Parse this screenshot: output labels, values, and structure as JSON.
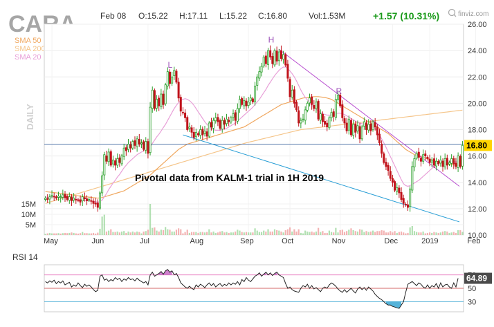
{
  "header": {
    "ticker": "CARA",
    "date": "Feb 08",
    "open": "O:15.22",
    "high": "H:17.11",
    "low": "L:15.22",
    "close": "C:16.80",
    "volume": "Vol:1.53M",
    "change": "+1.57 (10.31%)",
    "brand": "finviz.com",
    "daily_label": "DAILY"
  },
  "legend": [
    {
      "label": "SMA 50",
      "color": "#f0a860"
    },
    {
      "label": "SMA 200",
      "color": "#f5c58a"
    },
    {
      "label": "SMA 20",
      "color": "#e8a0d8"
    }
  ],
  "annotation": "Pivotal data from KALM-1 trial in 1H 2019",
  "pivot_labels": [
    "L",
    "H",
    "R"
  ],
  "colors": {
    "up": "#2ca02c",
    "down": "#c0121a",
    "trendline_upper": "#b84fd0",
    "trendline_lower": "#2a9fd6",
    "horizontal_level": "#5577aa",
    "rsi_line": "#222222",
    "rsi_overbought": "#e05bb0",
    "rsi_oversold": "#2aa0d0",
    "rsi_mid": "#cc4444",
    "price_tag": "#ffd400"
  },
  "chart_data": [
    {
      "type": "candlestick",
      "title": "CARA",
      "ylabel": "",
      "ylim": [
        10,
        26
      ],
      "y_ticks": [
        "26.00",
        "24.00",
        "22.00",
        "20.00",
        "18.00",
        "16.00",
        "14.00",
        "12.00",
        "10.00"
      ],
      "y_tick_values": [
        26,
        24,
        22,
        20,
        18,
        16,
        14,
        12,
        10
      ],
      "x_ticks": [
        "May",
        "Jun",
        "Jul",
        "Aug",
        "Sep",
        "Oct",
        "Nov",
        "Dec",
        "2019",
        "Feb"
      ],
      "x_tick_index": [
        3,
        25,
        47,
        70,
        93,
        112,
        135,
        159,
        176,
        197
      ],
      "last_price": "16.80",
      "horizontal_level": 16.9,
      "volume_axis": {
        "ticks": [
          "15M",
          "10M",
          "5M"
        ],
        "tick_values": [
          15,
          10,
          5
        ],
        "unit": "M"
      },
      "close": [
        12.8,
        12.7,
        12.9,
        13.0,
        12.9,
        12.8,
        12.95,
        12.9,
        13.05,
        12.85,
        12.7,
        12.9,
        12.6,
        12.8,
        12.7,
        12.65,
        12.5,
        12.9,
        12.75,
        12.6,
        12.7,
        12.6,
        12.4,
        12.35,
        12.1,
        13.2,
        14.5,
        16.1,
        15.6,
        16.3,
        15.3,
        15.7,
        15.3,
        15.8,
        15.5,
        16.0,
        16.6,
        16.4,
        16.9,
        16.6,
        17.1,
        16.8,
        17.3,
        16.9,
        17.0,
        16.5,
        17.1,
        16.2,
        19.7,
        21.0,
        19.6,
        20.3,
        19.8,
        20.7,
        19.9,
        21.4,
        22.4,
        21.5,
        22.0,
        22.5,
        21.6,
        20.4,
        19.4,
        19.3,
        18.9,
        18.0,
        18.2,
        17.8,
        17.4,
        17.8,
        17.6,
        18.0,
        17.6,
        17.9,
        17.5,
        18.5,
        18.2,
        18.7,
        18.9,
        18.6,
        18.1,
        18.7,
        18.4,
        18.8,
        18.6,
        18.9,
        19.2,
        18.7,
        19.6,
        20.3,
        19.9,
        20.2,
        19.8,
        20.1,
        20.4,
        20.1,
        21.3,
        22.0,
        22.4,
        22.8,
        23.5,
        23.0,
        24.0,
        23.5,
        23.0,
        24.0,
        23.2,
        23.9,
        23.4,
        23.7,
        22.9,
        21.9,
        20.5,
        21.0,
        20.0,
        19.5,
        18.5,
        18.7,
        18.8,
        19.5,
        20.0,
        20.4,
        19.9,
        19.6,
        20.1,
        18.8,
        19.2,
        18.6,
        18.4,
        18.2,
        18.9,
        19.3,
        19.0,
        20.3,
        20.6,
        19.8,
        18.9,
        18.5,
        17.9,
        18.8,
        17.6,
        18.4,
        17.8,
        18.3,
        17.3,
        18.2,
        18.6,
        18.0,
        18.4,
        17.9,
        18.6,
        18.2,
        17.6,
        17.0,
        16.2,
        15.5,
        15.2,
        14.9,
        14.3,
        14.0,
        13.4,
        13.6,
        13.2,
        12.7,
        12.4,
        12.3,
        12.1,
        13.5,
        15.2,
        15.8,
        16.2,
        15.9,
        15.6,
        16.1,
        16.0,
        15.8,
        15.5,
        15.7,
        15.3,
        15.6,
        15.4,
        15.7,
        15.2,
        15.8,
        15.3,
        15.5,
        15.8,
        15.4,
        15.2,
        16.0,
        15.2,
        16.8
      ],
      "sma20": [
        12.9,
        12.85,
        12.85,
        12.9,
        12.9,
        12.88,
        12.87,
        12.86,
        12.85,
        12.83,
        12.8,
        12.78,
        12.75,
        12.73,
        12.7,
        12.68,
        12.66,
        12.65,
        12.63,
        12.6,
        12.59,
        12.58,
        12.56,
        12.53,
        12.5,
        12.55,
        12.65,
        12.9,
        13.15,
        13.45,
        13.7,
        13.95,
        14.15,
        14.4,
        14.6,
        14.85,
        15.1,
        15.3,
        15.5,
        15.65,
        15.8,
        15.95,
        16.1,
        16.2,
        16.3,
        16.4,
        16.5,
        16.55,
        16.7,
        16.95,
        17.2,
        17.45,
        17.65,
        17.9,
        18.15,
        18.4,
        18.7,
        19.0,
        19.3,
        19.6,
        19.85,
        20.05,
        20.2,
        20.3,
        20.35,
        20.3,
        20.2,
        20.05,
        19.85,
        19.6,
        19.35,
        19.1,
        18.85,
        18.6,
        18.4,
        18.25,
        18.1,
        18.0,
        17.95,
        17.95,
        17.95,
        18.0,
        18.05,
        18.1,
        18.2,
        18.3,
        18.4,
        18.5,
        18.65,
        18.8,
        18.95,
        19.1,
        19.25,
        19.4,
        19.55,
        19.7,
        19.9,
        20.1,
        20.3,
        20.55,
        20.8,
        21.05,
        21.35,
        21.6,
        21.85,
        22.1,
        22.3,
        22.5,
        22.65,
        22.75,
        22.75,
        22.65,
        22.45,
        22.25,
        22.0,
        21.7,
        21.35,
        21.0,
        20.7,
        20.45,
        20.25,
        20.05,
        19.85,
        19.7,
        19.55,
        19.4,
        19.3,
        19.2,
        19.15,
        19.1,
        19.1,
        19.1,
        19.15,
        19.2,
        19.25,
        19.25,
        19.2,
        19.15,
        19.05,
        18.95,
        18.85,
        18.75,
        18.65,
        18.55,
        18.5,
        18.45,
        18.4,
        18.35,
        18.3,
        18.25,
        18.2,
        18.1,
        17.9,
        17.6,
        17.3,
        17.0,
        16.65,
        16.3,
        15.95,
        15.6,
        15.25,
        14.9,
        14.55,
        14.2,
        13.9,
        13.75,
        13.7,
        13.75,
        13.85,
        13.95,
        14.05,
        14.15,
        14.3,
        14.45,
        14.6,
        14.75,
        14.9,
        15.05,
        15.2,
        15.35,
        15.45,
        15.55,
        15.6,
        15.65,
        15.65,
        15.6,
        15.55,
        15.6,
        15.55,
        15.6
      ],
      "sma50": [
        13.3,
        13.28,
        13.26,
        13.24,
        13.22,
        13.2,
        13.18,
        13.16,
        13.14,
        13.12,
        13.1,
        13.08,
        13.06,
        13.03,
        13.0,
        12.98,
        12.96,
        12.94,
        12.92,
        12.9,
        12.88,
        12.86,
        12.84,
        12.82,
        12.8,
        12.82,
        12.85,
        12.9,
        12.95,
        13.0,
        13.05,
        13.1,
        13.15,
        13.2,
        13.25,
        13.3,
        13.35,
        13.45,
        13.55,
        13.65,
        13.75,
        13.85,
        13.95,
        14.05,
        14.15,
        14.25,
        14.35,
        14.45,
        14.55,
        14.7,
        14.85,
        15.0,
        15.15,
        15.3,
        15.45,
        15.6,
        15.75,
        15.9,
        16.05,
        16.2,
        16.35,
        16.5,
        16.6,
        16.7,
        16.8,
        16.9,
        16.95,
        17.0,
        17.05,
        17.1,
        17.15,
        17.2,
        17.25,
        17.3,
        17.35,
        17.4,
        17.45,
        17.5,
        17.55,
        17.6,
        17.65,
        17.7,
        17.75,
        17.8,
        17.85,
        17.9,
        17.95,
        18.0,
        18.05,
        18.1,
        18.15,
        18.2,
        18.3,
        18.4,
        18.5,
        18.6,
        18.7,
        18.8,
        18.9,
        19.0,
        19.1,
        19.2,
        19.3,
        19.4,
        19.5,
        19.6,
        19.7,
        19.8,
        19.9,
        19.95,
        20.0,
        20.05,
        20.1,
        20.15,
        20.2,
        20.25,
        20.3,
        20.35,
        20.4,
        20.42,
        20.44,
        20.46,
        20.48,
        20.5,
        20.5,
        20.5,
        20.48,
        20.46,
        20.44,
        20.4,
        20.35,
        20.3,
        20.2,
        20.1,
        20.0,
        19.9,
        19.8,
        19.7,
        19.6,
        19.5,
        19.4,
        19.3,
        19.2,
        19.1,
        19.0,
        18.9,
        18.8,
        18.7,
        18.6,
        18.5,
        18.4,
        18.3,
        18.2,
        18.1,
        18.0,
        17.9,
        17.8,
        17.7,
        17.55,
        17.4,
        17.25,
        17.1,
        16.95,
        16.8,
        16.65,
        16.5,
        16.4,
        16.3,
        16.2,
        16.1,
        16.05,
        16.0,
        15.95,
        15.9,
        15.85,
        15.8,
        15.75,
        15.7,
        15.65,
        15.6,
        15.55,
        15.5,
        15.45,
        15.4,
        15.38,
        15.36,
        15.34,
        15.32,
        15.3,
        15.28,
        15.26,
        15.25
      ],
      "sma200": [
        12.4,
        12.45,
        12.5,
        12.55,
        12.6,
        12.65,
        12.7,
        12.75,
        12.8,
        12.85,
        12.9,
        12.95,
        13.0,
        13.05,
        13.1,
        13.15,
        13.2,
        13.25,
        13.3,
        13.35,
        13.4,
        13.45,
        13.5,
        13.55,
        13.6,
        13.65,
        13.7,
        13.75,
        13.8,
        13.85,
        13.9,
        13.95,
        14.0,
        14.05,
        14.1,
        14.15,
        14.2,
        14.25,
        14.3,
        14.35,
        14.4,
        14.45,
        14.5,
        14.55,
        14.6,
        14.65,
        14.7,
        14.75,
        14.8,
        14.85,
        14.9,
        14.95,
        15.0,
        15.05,
        15.1,
        15.15,
        15.2,
        15.25,
        15.3,
        15.35,
        15.4,
        15.45,
        15.5,
        15.55,
        15.6,
        15.65,
        15.7,
        15.75,
        15.8,
        15.85,
        15.9,
        15.95,
        16.0,
        16.05,
        16.1,
        16.15,
        16.2,
        16.25,
        16.3,
        16.35,
        16.4,
        16.45,
        16.5,
        16.55,
        16.6,
        16.65,
        16.7,
        16.75,
        16.8,
        16.85,
        16.9,
        16.95,
        17.0,
        17.04,
        17.08,
        17.12,
        17.16,
        17.2,
        17.24,
        17.28,
        17.32,
        17.36,
        17.4,
        17.44,
        17.48,
        17.52,
        17.56,
        17.6,
        17.64,
        17.68,
        17.72,
        17.76,
        17.8,
        17.84,
        17.88,
        17.92,
        17.96,
        18.0,
        18.02,
        18.04,
        18.06,
        18.08,
        18.1,
        18.12,
        18.14,
        18.16,
        18.18,
        18.2,
        18.22,
        18.24,
        18.26,
        18.28,
        18.3,
        18.32,
        18.34,
        18.36,
        18.38,
        18.4,
        18.42,
        18.44,
        18.46,
        18.48,
        18.5,
        18.52,
        18.54,
        18.56,
        18.58,
        18.6,
        18.62,
        18.64,
        18.66,
        18.68,
        18.7,
        18.72,
        18.74,
        18.76,
        18.78,
        18.8,
        18.82,
        18.84,
        18.86,
        18.88,
        18.9,
        18.92,
        18.94,
        18.96,
        18.98,
        19.0,
        19.02,
        19.04,
        19.06,
        19.08,
        19.1,
        19.12,
        19.14,
        19.16,
        19.18,
        19.2,
        19.22,
        19.24,
        19.26,
        19.28,
        19.3,
        19.32,
        19.34,
        19.36,
        19.38,
        19.4,
        19.42,
        19.44,
        19.46,
        19.48
      ]
    },
    {
      "type": "line",
      "title": "RSI 14",
      "ylim": [
        15,
        85
      ],
      "y_ticks": [
        "70",
        "50",
        "30"
      ],
      "y_tick_values": [
        70,
        50,
        30
      ],
      "last_value": "64.89",
      "values": [
        60,
        58,
        61,
        59,
        62,
        57,
        60,
        58,
        61,
        55,
        57,
        59,
        52,
        55,
        53,
        58,
        54,
        51,
        56,
        53,
        55,
        52,
        48,
        45,
        47,
        68,
        70,
        62,
        64,
        60,
        63,
        61,
        66,
        63,
        65,
        60,
        64,
        62,
        66,
        63,
        64,
        61,
        65,
        62,
        60,
        58,
        60,
        55,
        70,
        74,
        68,
        70,
        72,
        75,
        71,
        76,
        78,
        74,
        76,
        70,
        72,
        66,
        58,
        55,
        52,
        50,
        53,
        50,
        48,
        55,
        52,
        56,
        54,
        51,
        55,
        58,
        54,
        57,
        52,
        55,
        57,
        53,
        56,
        54,
        58,
        55,
        58,
        56,
        60,
        55,
        63,
        60,
        66,
        62,
        60,
        64,
        68,
        70,
        73,
        68,
        71,
        74,
        70,
        73,
        69,
        72,
        74,
        70,
        68,
        66,
        57,
        50,
        52,
        48,
        46,
        45,
        44,
        50,
        54,
        52,
        56,
        50,
        54,
        49,
        51,
        48,
        45,
        50,
        52,
        50,
        55,
        58,
        56,
        53,
        49,
        46,
        44,
        48,
        44,
        47,
        50,
        46,
        43,
        49,
        52,
        48,
        51,
        47,
        52,
        49,
        46,
        41,
        38,
        35,
        33,
        30,
        27,
        25,
        25,
        23,
        22,
        21,
        20,
        25,
        30,
        44,
        56,
        58,
        60,
        57,
        54,
        58,
        56,
        52,
        50,
        55,
        50,
        54,
        52,
        57,
        50,
        58,
        52,
        55,
        56,
        52,
        50,
        58,
        52,
        64.89
      ]
    }
  ]
}
